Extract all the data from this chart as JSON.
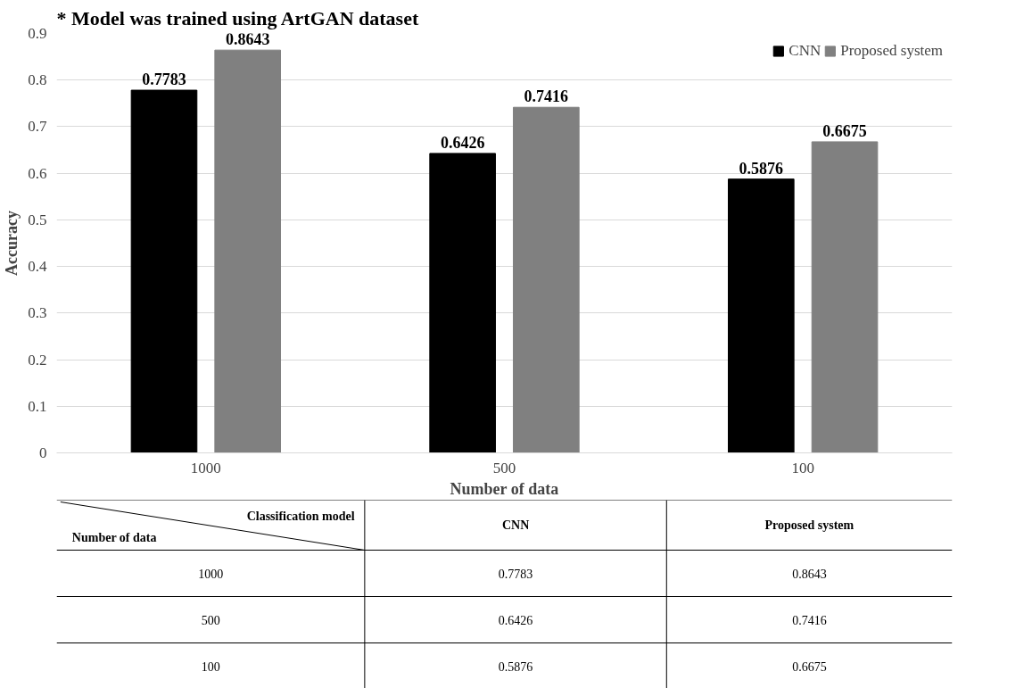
{
  "chart_data": {
    "type": "bar",
    "title": "* Model was trained using ArtGAN dataset",
    "xlabel": "Number of data",
    "ylabel": "Accuracy",
    "categories": [
      "1000",
      "500",
      "100"
    ],
    "series": [
      {
        "name": "CNN",
        "color": "#000000",
        "values": [
          0.7783,
          0.6426,
          0.5876
        ]
      },
      {
        "name": "Proposed system",
        "color": "#808080",
        "values": [
          0.8643,
          0.7416,
          0.6675
        ]
      }
    ],
    "ylim": [
      0,
      0.9
    ],
    "yticks": [
      0,
      0.1,
      0.2,
      0.3,
      0.4,
      0.5,
      0.6,
      0.7,
      0.8,
      0.9
    ],
    "grid": "y",
    "legend": "top right",
    "data_labels": true,
    "annotations": [
      "Classification model",
      "Number of data",
      "0.7783",
      "0.8643",
      "0.6426",
      "0.7416",
      "0.5876",
      "0.6675"
    ]
  }
}
